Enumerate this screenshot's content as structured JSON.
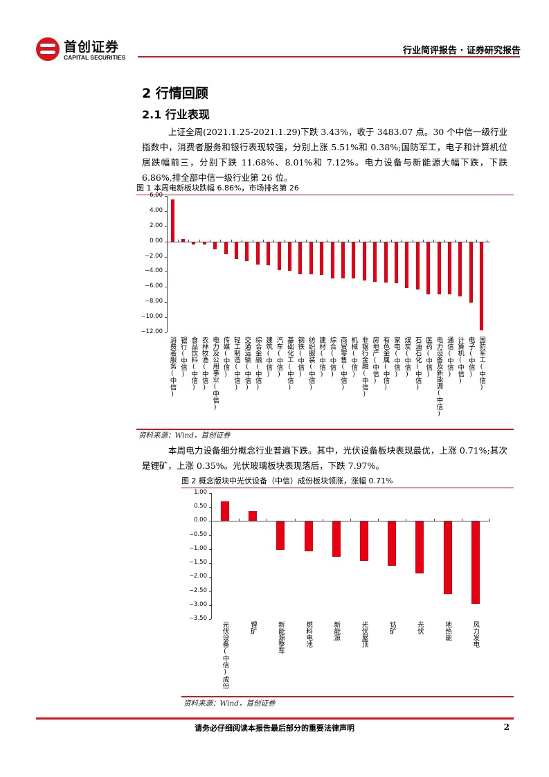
{
  "header": {
    "logo_cn": "首创证券",
    "logo_en": "CAPITAL SECURITIES",
    "report_type": "行业简评报告 · 证券研究报告",
    "brand_color": "#d9141c"
  },
  "section": {
    "h1": "2 行情回顾",
    "h2": "2.1 行业表现"
  },
  "paragraphs": [
    "上证全周(2021.1.25-2021.1.29)下跌 3.43%，收于 3483.07 点。30 个中信一级行业指数中，消费者服务和银行表现较强，分别上涨 5.51%和 0.38%;国防军工，电子和计算机位居跌幅前三，分别下跌 11.68%、8.01%和 7.12%。电力设备与新能源大幅下跌，下跌 6.86%,排全部中信一级行业第 26 位。",
    "本周电力设备细分概念行业普遍下跌。其中，光伏设备板块表现最优，上涨 0.71%;其次是锂矿，上涨 0.35%。光伏玻璃板块表现落后，下跌 7.97%。"
  ],
  "figure1": {
    "caption": "图 1 本周电新板块跌幅 6.86%，市场排名第 26",
    "source": "资料来源：Wind，首创证券"
  },
  "figure2": {
    "caption": "图 2 概念版块中光伏设备（中信）成份板块领涨，涨幅 0.71%",
    "source": "资料来源：Wind，首创证券"
  },
  "footer": {
    "disclaimer": "请务必仔细阅读本报告最后部分的重要法律声明",
    "page_number": "2"
  },
  "chart_data": [
    {
      "type": "bar",
      "title": "图 1 本周电新板块跌幅 6.86%，市场排名第 26",
      "xlabel": "",
      "ylabel": "",
      "ylim": [
        -12,
        6
      ],
      "yticks": [
        "6.00",
        "4.00",
        "2.00",
        "0.00",
        "-2.00",
        "-4.00",
        "-6.00",
        "-8.00",
        "-10.00",
        "-12.00"
      ],
      "grid": false,
      "color": "#e60012",
      "categories": [
        "消费者服务(中信)",
        "银行(中信)",
        "食品饮料(中信)",
        "农林牧渔(中信)",
        "电力及公用事业(中信)",
        "传媒(中信)",
        "轻工制造(中信)",
        "交通运输(中信)",
        "综合金融(中信)",
        "建筑(中信)",
        "汽车(中信)",
        "基础化工(中信)",
        "钢铁(中信)",
        "纺织服装(中信)",
        "建材(中信)",
        "综合(中信)",
        "商贸零售(中信)",
        "机械(中信)",
        "非银行金融(中信)",
        "房地产(中信)",
        "有色金属(中信)",
        "家电(中信)",
        "煤炭(中信)",
        "石油石化(中信)",
        "医药(中信)",
        "电力设备及新能源(中信)",
        "通信(中信)",
        "计算机(中信)",
        "电子(中信)",
        "国防军工(中信)"
      ],
      "values": [
        5.51,
        0.38,
        -0.3,
        -0.35,
        -0.95,
        -1.55,
        -2.25,
        -2.5,
        -2.95,
        -3.05,
        -3.7,
        -3.8,
        -4.25,
        -4.25,
        -4.35,
        -4.75,
        -4.75,
        -4.8,
        -5.05,
        -5.2,
        -5.3,
        -5.45,
        -6.1,
        -6.2,
        -6.85,
        -6.86,
        -6.9,
        -7.12,
        -8.01,
        -11.68
      ]
    },
    {
      "type": "bar",
      "title": "图 2 概念版块中光伏设备（中信）成份板块领涨，涨幅 0.71%",
      "xlabel": "",
      "ylabel": "",
      "ylim": [
        -3.5,
        1.0
      ],
      "yticks": [
        "1.00",
        "0.50",
        "0.00",
        "-0.50",
        "-1.00",
        "-1.50",
        "-2.00",
        "-2.50",
        "-3.00",
        "-3.50"
      ],
      "grid": false,
      "color": "#e60012",
      "categories": [
        "光伏设备(中信)成份",
        "锂矿",
        "新能源整车",
        "燃料电池",
        "新能源",
        "光伏屋顶",
        "钴矿",
        "光伏",
        "地热能",
        "风力发电"
      ],
      "values": [
        0.71,
        0.35,
        -1.0,
        -1.05,
        -1.26,
        -1.39,
        -1.58,
        -1.84,
        -2.58,
        -2.92
      ]
    }
  ]
}
